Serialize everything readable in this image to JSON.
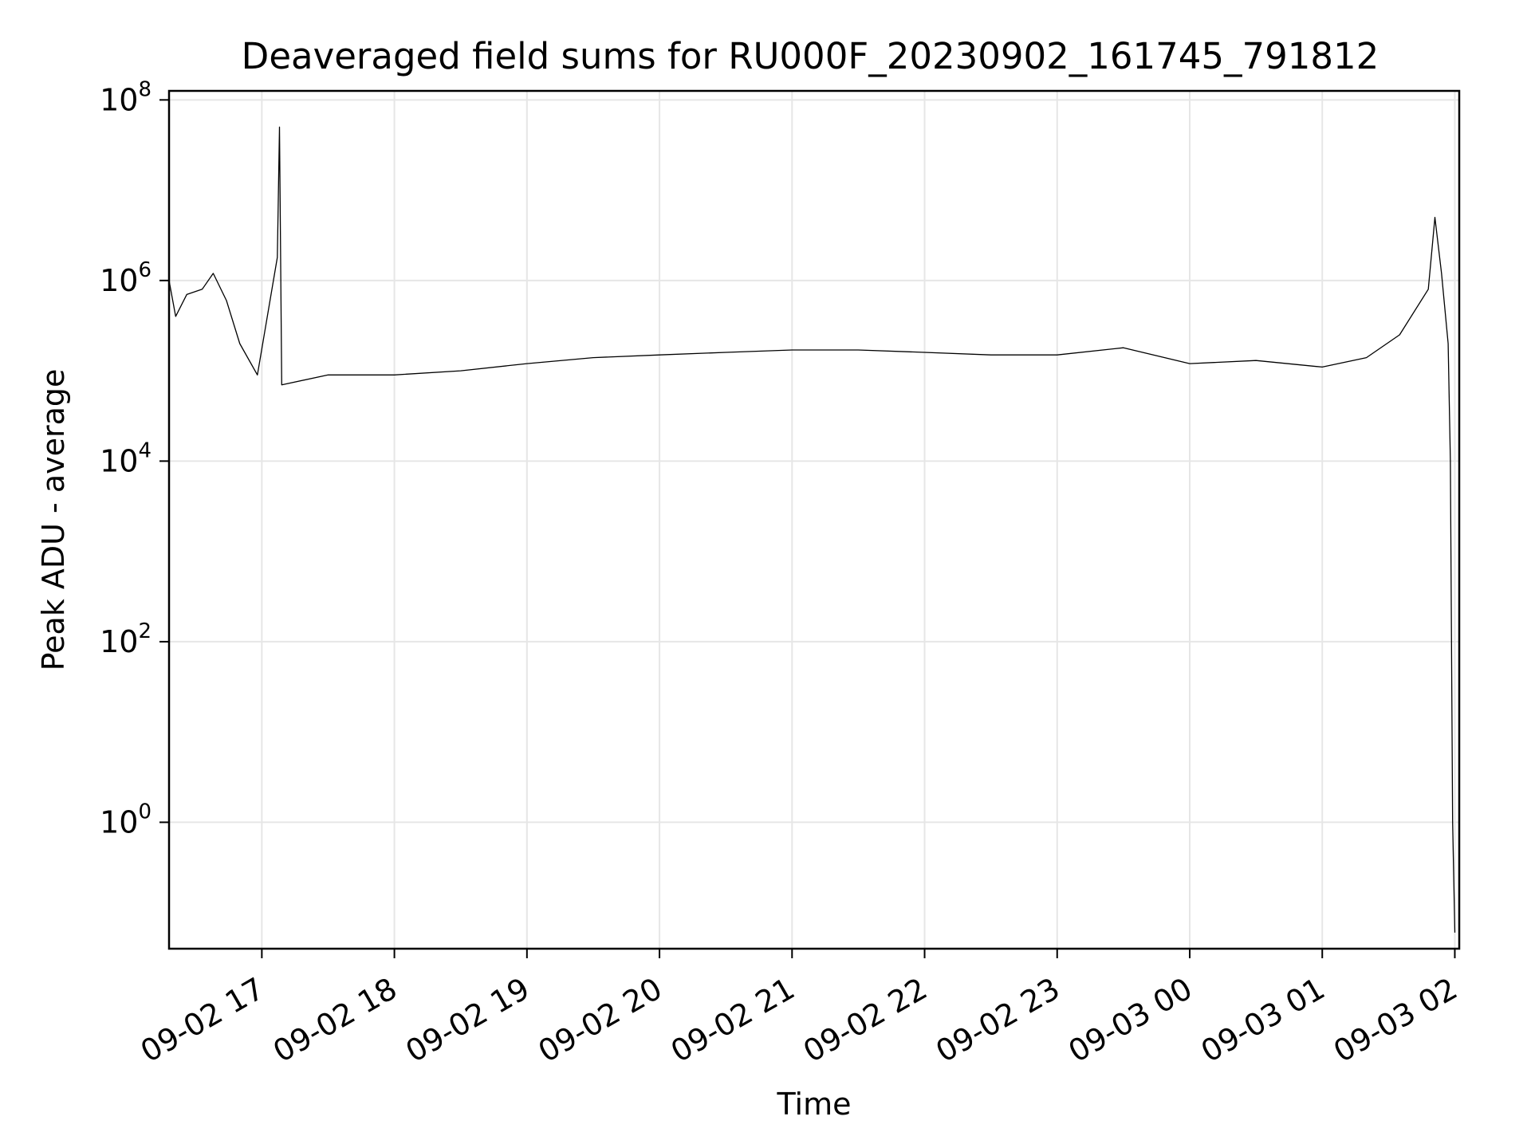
{
  "chart_data": {
    "type": "line",
    "title": "Deaveraged field sums for RU000F_20230902_161745_791812",
    "xlabel": "Time",
    "ylabel": "Peak ADU - average",
    "yscale": "log",
    "ylim_exponent": [
      -1.4,
      8.1
    ],
    "xlim": [
      "2023-09-02 16:18",
      "2023-09-03 02:02"
    ],
    "grid": true,
    "x_ticks": [
      {
        "label": "09-02 17",
        "t": "2023-09-02 17:00"
      },
      {
        "label": "09-02 18",
        "t": "2023-09-02 18:00"
      },
      {
        "label": "09-02 19",
        "t": "2023-09-02 19:00"
      },
      {
        "label": "09-02 20",
        "t": "2023-09-02 20:00"
      },
      {
        "label": "09-02 21",
        "t": "2023-09-02 21:00"
      },
      {
        "label": "09-02 22",
        "t": "2023-09-02 22:00"
      },
      {
        "label": "09-02 23",
        "t": "2023-09-02 23:00"
      },
      {
        "label": "09-03 00",
        "t": "2023-09-03 00:00"
      },
      {
        "label": "09-03 01",
        "t": "2023-09-03 01:00"
      },
      {
        "label": "09-03 02",
        "t": "2023-09-03 02:00"
      }
    ],
    "y_ticks": [
      {
        "base": "10",
        "exp": "0",
        "value": 1
      },
      {
        "base": "10",
        "exp": "2",
        "value": 100
      },
      {
        "base": "10",
        "exp": "4",
        "value": 10000
      },
      {
        "base": "10",
        "exp": "6",
        "value": 1000000
      },
      {
        "base": "10",
        "exp": "8",
        "value": 100000000
      }
    ],
    "series": [
      {
        "color": "#000000",
        "points": [
          [
            "2023-09-02 16:18",
            1000000
          ],
          [
            "2023-09-02 16:21",
            400000
          ],
          [
            "2023-09-02 16:26",
            700000
          ],
          [
            "2023-09-02 16:33",
            800000
          ],
          [
            "2023-09-02 16:38",
            1200000
          ],
          [
            "2023-09-02 16:44",
            600000
          ],
          [
            "2023-09-02 16:50",
            200000
          ],
          [
            "2023-09-02 16:58",
            90000
          ],
          [
            "2023-09-02 17:07",
            1800000
          ],
          [
            "2023-09-02 17:08",
            50000000
          ],
          [
            "2023-09-02 17:09",
            70000
          ],
          [
            "2023-09-02 17:30",
            90000
          ],
          [
            "2023-09-02 18:00",
            90000
          ],
          [
            "2023-09-02 18:30",
            100000
          ],
          [
            "2023-09-02 19:00",
            120000
          ],
          [
            "2023-09-02 19:30",
            140000
          ],
          [
            "2023-09-02 20:00",
            150000
          ],
          [
            "2023-09-02 20:30",
            160000
          ],
          [
            "2023-09-02 21:00",
            170000
          ],
          [
            "2023-09-02 21:30",
            170000
          ],
          [
            "2023-09-02 22:00",
            160000
          ],
          [
            "2023-09-02 22:30",
            150000
          ],
          [
            "2023-09-02 23:00",
            150000
          ],
          [
            "2023-09-02 23:30",
            180000
          ],
          [
            "2023-09-03 00:00",
            120000
          ],
          [
            "2023-09-03 00:30",
            130000
          ],
          [
            "2023-09-03 01:00",
            110000
          ],
          [
            "2023-09-03 01:20",
            140000
          ],
          [
            "2023-09-03 01:35",
            250000
          ],
          [
            "2023-09-03 01:48",
            800000
          ],
          [
            "2023-09-03 01:51",
            5000000
          ],
          [
            "2023-09-03 01:54",
            1200000
          ],
          [
            "2023-09-03 01:57",
            200000
          ],
          [
            "2023-09-03 01:58",
            10000
          ],
          [
            "2023-09-03 01:59",
            1
          ],
          [
            "2023-09-03 02:00",
            0.06
          ]
        ]
      }
    ]
  }
}
